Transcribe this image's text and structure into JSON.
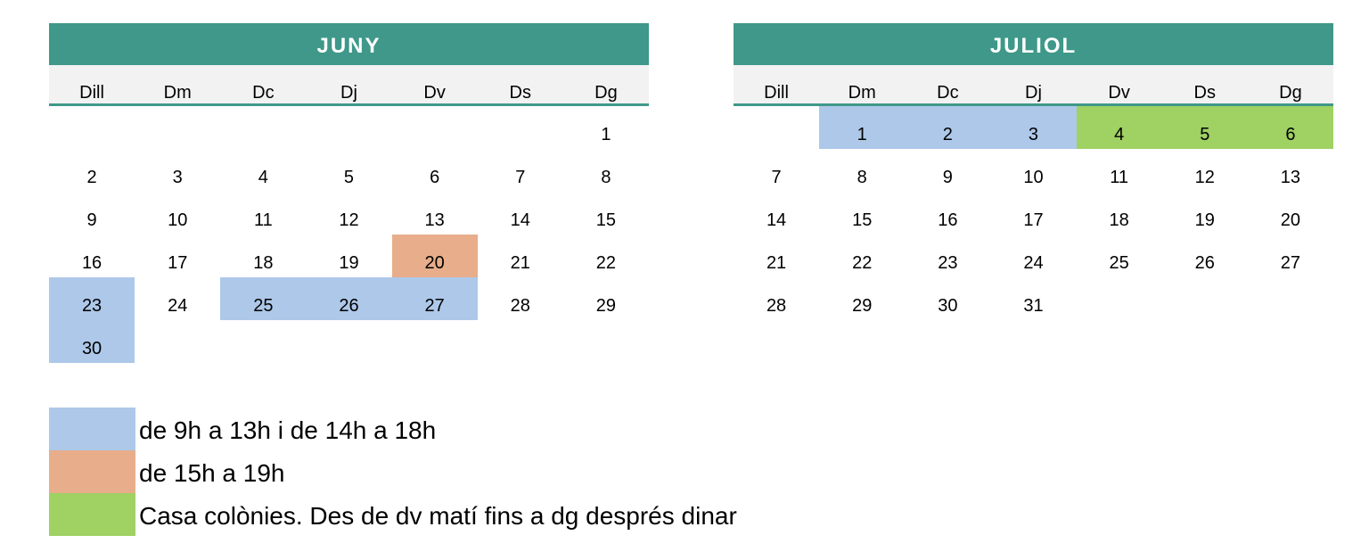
{
  "colors": {
    "header": "#3f9889",
    "blue": "#adc8e9",
    "orange": "#e8ad8a",
    "green": "#9fd163"
  },
  "calendars": [
    {
      "title": "JUNY",
      "weekdays": [
        "Dill",
        "Dm",
        "Dc",
        "Dj",
        "Dv",
        "Ds",
        "Dg"
      ],
      "weeks": [
        [
          {
            "d": ""
          },
          {
            "d": ""
          },
          {
            "d": ""
          },
          {
            "d": ""
          },
          {
            "d": ""
          },
          {
            "d": ""
          },
          {
            "d": "1"
          }
        ],
        [
          {
            "d": "2"
          },
          {
            "d": "3"
          },
          {
            "d": "4"
          },
          {
            "d": "5"
          },
          {
            "d": "6"
          },
          {
            "d": "7"
          },
          {
            "d": "8"
          }
        ],
        [
          {
            "d": "9"
          },
          {
            "d": "10"
          },
          {
            "d": "11"
          },
          {
            "d": "12"
          },
          {
            "d": "13"
          },
          {
            "d": "14"
          },
          {
            "d": "15"
          }
        ],
        [
          {
            "d": "16"
          },
          {
            "d": "17"
          },
          {
            "d": "18"
          },
          {
            "d": "19"
          },
          {
            "d": "20",
            "c": "orange"
          },
          {
            "d": "21"
          },
          {
            "d": "22"
          }
        ],
        [
          {
            "d": "23",
            "c": "blue"
          },
          {
            "d": "24"
          },
          {
            "d": "25",
            "c": "blue"
          },
          {
            "d": "26",
            "c": "blue"
          },
          {
            "d": "27",
            "c": "blue"
          },
          {
            "d": "28"
          },
          {
            "d": "29"
          }
        ],
        [
          {
            "d": "30",
            "c": "blue"
          },
          {
            "d": ""
          },
          {
            "d": ""
          },
          {
            "d": ""
          },
          {
            "d": ""
          },
          {
            "d": ""
          },
          {
            "d": ""
          }
        ]
      ]
    },
    {
      "title": "JULIOL",
      "weekdays": [
        "Dill",
        "Dm",
        "Dc",
        "Dj",
        "Dv",
        "Ds",
        "Dg"
      ],
      "weeks": [
        [
          {
            "d": ""
          },
          {
            "d": "1",
            "c": "blue"
          },
          {
            "d": "2",
            "c": "blue"
          },
          {
            "d": "3",
            "c": "blue"
          },
          {
            "d": "4",
            "c": "green"
          },
          {
            "d": "5",
            "c": "green"
          },
          {
            "d": "6",
            "c": "green"
          }
        ],
        [
          {
            "d": "7"
          },
          {
            "d": "8"
          },
          {
            "d": "9"
          },
          {
            "d": "10"
          },
          {
            "d": "11"
          },
          {
            "d": "12"
          },
          {
            "d": "13"
          }
        ],
        [
          {
            "d": "14"
          },
          {
            "d": "15"
          },
          {
            "d": "16"
          },
          {
            "d": "17"
          },
          {
            "d": "18"
          },
          {
            "d": "19"
          },
          {
            "d": "20"
          }
        ],
        [
          {
            "d": "21"
          },
          {
            "d": "22"
          },
          {
            "d": "23"
          },
          {
            "d": "24"
          },
          {
            "d": "25"
          },
          {
            "d": "26"
          },
          {
            "d": "27"
          }
        ],
        [
          {
            "d": "28"
          },
          {
            "d": "29"
          },
          {
            "d": "30"
          },
          {
            "d": "31"
          },
          {
            "d": ""
          },
          {
            "d": ""
          },
          {
            "d": ""
          }
        ]
      ]
    }
  ],
  "legend": [
    {
      "color": "blue",
      "label": "de 9h a 13h i de 14h a 18h"
    },
    {
      "color": "orange",
      "label": "de 15h a 19h"
    },
    {
      "color": "green",
      "label": "Casa colònies. Des de dv matí fins a dg després dinar"
    }
  ]
}
